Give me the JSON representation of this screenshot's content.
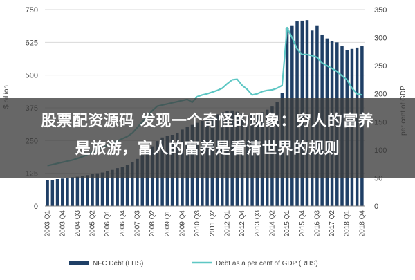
{
  "chart_data": {
    "type": "bar+line",
    "x": [
      "2003 Q1",
      "2003 Q2",
      "2003 Q3",
      "2003 Q4",
      "2004 Q1",
      "2004 Q2",
      "2004 Q3",
      "2004 Q4",
      "2005 Q1",
      "2005 Q2",
      "2005 Q3",
      "2005 Q4",
      "2006 Q1",
      "2006 Q2",
      "2006 Q3",
      "2006 Q4",
      "2007 Q1",
      "2007 Q2",
      "2007 Q3",
      "2007 Q4",
      "2008 Q1",
      "2008 Q2",
      "2008 Q3",
      "2008 Q4",
      "2009 Q1",
      "2009 Q2",
      "2009 Q3",
      "2009 Q4",
      "2010 Q1",
      "2010 Q2",
      "2010 Q3",
      "2010 Q4",
      "2011 Q1",
      "2011 Q2",
      "2011 Q3",
      "2011 Q4",
      "2012 Q1",
      "2012 Q2",
      "2012 Q3",
      "2012 Q4",
      "2013 Q1",
      "2013 Q2",
      "2013 Q3",
      "2013 Q4",
      "2014 Q1",
      "2014 Q2",
      "2014 Q3",
      "2014 Q4",
      "2015 Q1",
      "2015 Q2",
      "2015 Q3",
      "2015 Q4",
      "2016 Q1",
      "2016 Q2",
      "2016 Q3",
      "2016 Q4",
      "2017 Q1",
      "2017 Q2",
      "2017 Q3",
      "2017 Q4",
      "2018 Q1",
      "2018 Q2",
      "2018 Q3",
      "2018 Q4"
    ],
    "x_tick_labels": [
      "2003 Q1",
      "2003 Q4",
      "2004 Q3",
      "2005 Q2",
      "2006 Q1",
      "2006 Q4",
      "2007 Q3",
      "2008 Q2",
      "2009 Q1",
      "2009 Q4",
      "2010 Q3",
      "2011 Q2",
      "2012 Q1",
      "2012 Q4",
      "2013 Q3",
      "2014 Q2",
      "2015 Q1",
      "2015 Q4",
      "2016 Q3",
      "2017 Q2",
      "2018 Q1",
      "2018 Q4"
    ],
    "series": [
      {
        "name": "NFC Debt (LHS)",
        "type": "bar",
        "axis": "left",
        "color": "#1f3f66",
        "values": [
          98,
          100,
          103,
          105,
          108,
          110,
          112,
          115,
          118,
          122,
          125,
          128,
          132,
          138,
          145,
          150,
          158,
          168,
          180,
          195,
          210,
          228,
          248,
          262,
          268,
          272,
          280,
          292,
          302,
          310,
          318,
          325,
          332,
          340,
          350,
          358,
          362,
          365,
          360,
          352,
          345,
          348,
          352,
          358,
          368,
          380,
          398,
          432,
          680,
          690,
          705,
          708,
          710,
          670,
          690,
          655,
          640,
          630,
          625,
          610,
          595,
          600,
          605,
          610
        ]
      },
      {
        "name": "Debt as a per cent of GDP (RHS)",
        "type": "line",
        "axis": "right",
        "color": "#5ec7c4",
        "values": [
          72,
          74,
          76,
          78,
          80,
          82,
          85,
          88,
          92,
          96,
          100,
          104,
          108,
          112,
          116,
          120,
          124,
          130,
          140,
          150,
          160,
          170,
          178,
          180,
          182,
          184,
          186,
          188,
          190,
          185,
          195,
          198,
          200,
          203,
          206,
          210,
          218,
          225,
          226,
          215,
          208,
          198,
          200,
          204,
          206,
          207,
          210,
          215,
          318,
          300,
          280,
          270,
          270,
          268,
          265,
          255,
          250,
          245,
          240,
          232,
          225,
          210,
          200,
          198
        ]
      }
    ],
    "y_left": {
      "label": "$ billion",
      "ticks": [
        0,
        125,
        250,
        375,
        500,
        625,
        750
      ],
      "range": [
        0,
        750
      ]
    },
    "y_right": {
      "label": "per cent of GDP",
      "ticks": [
        0,
        50,
        100,
        150,
        200,
        250,
        300,
        350
      ],
      "range": [
        0,
        350
      ]
    },
    "grid": "horizontal",
    "legend_position": "bottom"
  },
  "overlay": {
    "line1": "股票配资源码 发现一个奇怪的现象：穷人的富养",
    "line2": "是旅游，富人的富养是看清世界的规则"
  }
}
